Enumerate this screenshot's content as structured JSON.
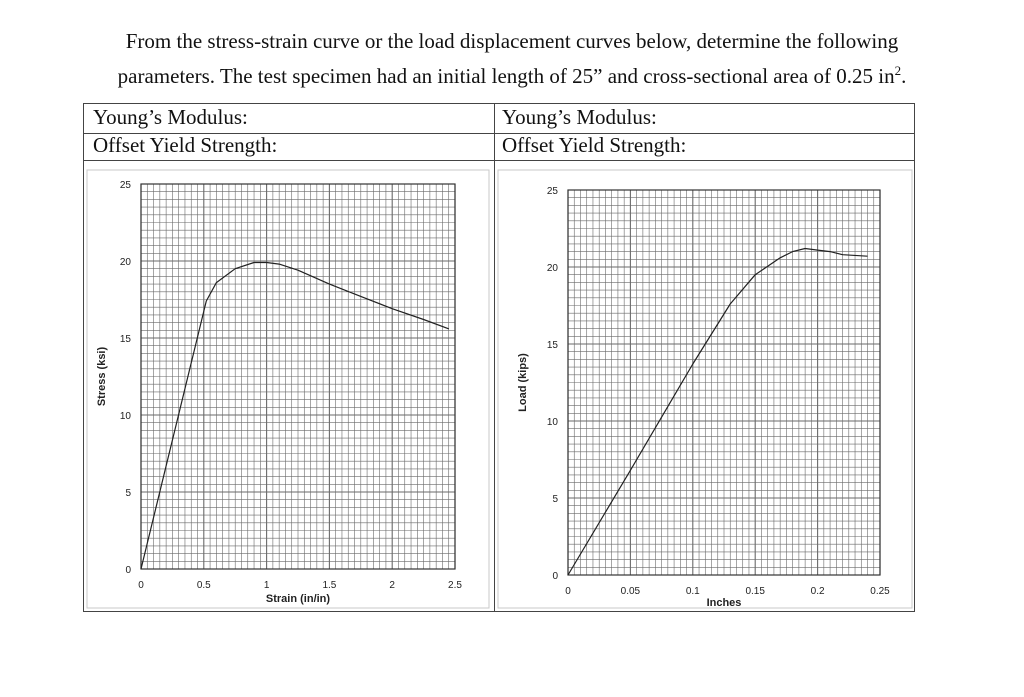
{
  "problem": {
    "line1": "From the stress-strain curve or the load displacement curves below, determine the following",
    "line2_prefix": "parameters. The test specimen had an initial length of 25” and cross-sectional area of 0.25 in",
    "line2_sup": "2",
    "line2_suffix": "."
  },
  "fields": {
    "left": {
      "youngs_label": "Young’s Modulus:",
      "yield_label": "Offset Yield Strength:"
    },
    "right": {
      "youngs_label": "Young’s Modulus:",
      "yield_label": "Offset Yield Strength:"
    }
  },
  "chart_data": [
    {
      "type": "line",
      "title": "",
      "xlabel": "Strain (in/in)",
      "ylabel": "Stress (ksi)",
      "xlim": [
        0,
        2.5
      ],
      "ylim": [
        0,
        25
      ],
      "xticks": [
        "0",
        "0.5",
        "1",
        "1.5",
        "2",
        "2.5"
      ],
      "yticks": [
        "0",
        "5",
        "10",
        "15",
        "20",
        "25"
      ],
      "grid": true,
      "x": [
        0,
        0.52,
        0.6,
        0.75,
        0.9,
        1.0,
        1.1,
        1.25,
        1.5,
        1.75,
        2.0,
        2.25,
        2.45
      ],
      "y": [
        0,
        17.4,
        18.6,
        19.5,
        19.9,
        19.9,
        19.8,
        19.4,
        18.5,
        17.7,
        16.9,
        16.2,
        15.6
      ]
    },
    {
      "type": "line",
      "title": "",
      "xlabel": "Inches",
      "ylabel": "Load (kips)",
      "xlim": [
        0,
        0.25
      ],
      "ylim": [
        0,
        25
      ],
      "xticks": [
        "0",
        "0.05",
        "0.1",
        "0.15",
        "0.2",
        "0.25"
      ],
      "yticks": [
        "0",
        "5",
        "10",
        "15",
        "20",
        "25"
      ],
      "grid": true,
      "x": [
        0,
        0.05,
        0.1,
        0.13,
        0.15,
        0.17,
        0.18,
        0.19,
        0.2,
        0.21,
        0.22,
        0.24
      ],
      "y": [
        0,
        6.8,
        13.7,
        17.6,
        19.5,
        20.6,
        21.0,
        21.2,
        21.1,
        21.0,
        20.8,
        20.7
      ]
    }
  ]
}
